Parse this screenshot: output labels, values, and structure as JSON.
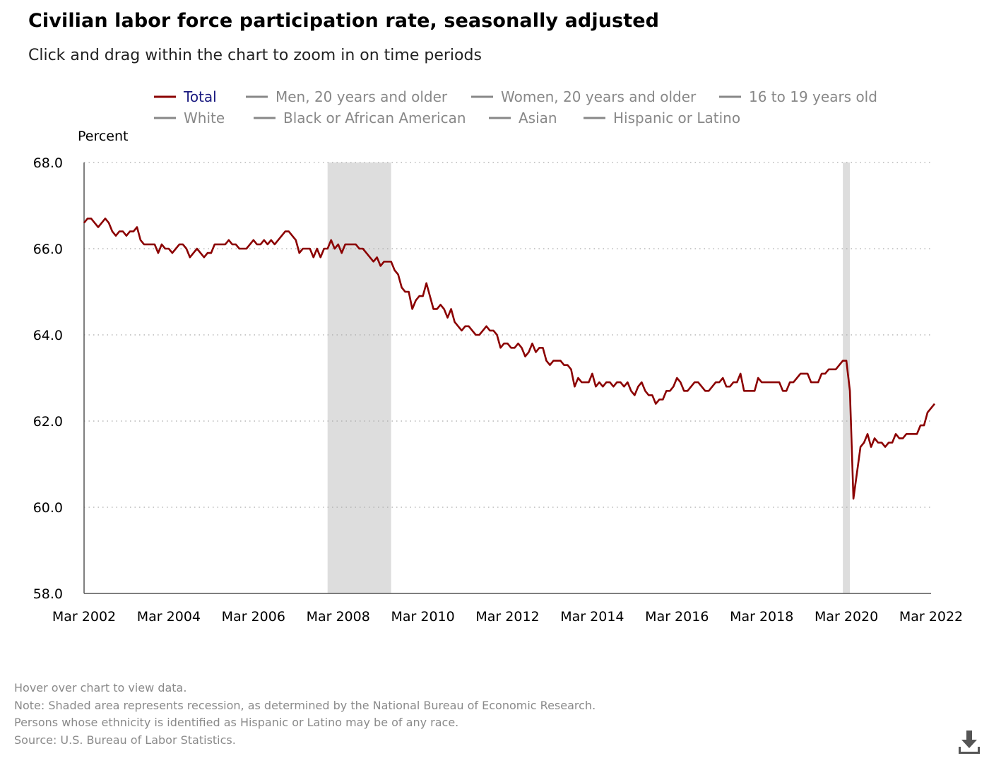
{
  "header": {
    "title": "Civilian labor force participation rate, seasonally adjusted",
    "subtitle": "Click and drag within the chart to zoom in on time periods"
  },
  "footnotes": [
    "Hover over chart to view data.",
    "Note: Shaded area represents recession, as determined by the National Bureau of Economic Research.",
    "Persons whose ethnicity is identified as Hispanic or Latino may be of any race.",
    "Source: U.S. Bureau of Labor Statistics."
  ],
  "download_icon": "download-icon",
  "colors": {
    "total_series": "#8b0000",
    "inactive_legend": "#888888",
    "active_legend_text": "#1a1a80",
    "recession_shade": "#dddddd",
    "grid": "#aaaaaa"
  },
  "chart_data": {
    "type": "line",
    "title": "Civilian labor force participation rate, seasonally adjusted",
    "ylabel": "Percent",
    "xlabel": "",
    "ylim": [
      58,
      68
    ],
    "yticks": [
      "58.0",
      "60.0",
      "62.0",
      "64.0",
      "66.0",
      "68.0"
    ],
    "x_range": [
      "2002-03",
      "2022-03"
    ],
    "xticks": [
      "Mar 2002",
      "Mar 2004",
      "Mar 2006",
      "Mar 2008",
      "Mar 2010",
      "Mar 2012",
      "Mar 2014",
      "Mar 2016",
      "Mar 2018",
      "Mar 2020",
      "Mar 2022"
    ],
    "grid": "horizontal dotted",
    "legend_position": "top",
    "recessions": [
      {
        "start": "2007-12",
        "end": "2009-06"
      },
      {
        "start": "2020-02",
        "end": "2020-04"
      }
    ],
    "legend": [
      {
        "name": "Total",
        "active": true
      },
      {
        "name": "Men, 20 years and older",
        "active": false
      },
      {
        "name": "Women, 20 years and older",
        "active": false
      },
      {
        "name": "16 to 19 years old",
        "active": false
      },
      {
        "name": "White",
        "active": false
      },
      {
        "name": "Black or African American",
        "active": false
      },
      {
        "name": "Asian",
        "active": false
      },
      {
        "name": "Hispanic or Latino",
        "active": false
      }
    ],
    "series": [
      {
        "name": "Total",
        "start": "2002-03",
        "frequency": "monthly",
        "values": [
          66.6,
          66.7,
          66.7,
          66.6,
          66.5,
          66.6,
          66.7,
          66.6,
          66.4,
          66.3,
          66.4,
          66.4,
          66.3,
          66.4,
          66.4,
          66.5,
          66.2,
          66.1,
          66.1,
          66.1,
          66.1,
          65.9,
          66.1,
          66.0,
          66.0,
          65.9,
          66.0,
          66.1,
          66.1,
          66.0,
          65.8,
          65.9,
          66.0,
          65.9,
          65.8,
          65.9,
          65.9,
          66.1,
          66.1,
          66.1,
          66.1,
          66.2,
          66.1,
          66.1,
          66.0,
          66.0,
          66.0,
          66.1,
          66.2,
          66.1,
          66.1,
          66.2,
          66.1,
          66.2,
          66.1,
          66.2,
          66.3,
          66.4,
          66.4,
          66.3,
          66.2,
          65.9,
          66.0,
          66.0,
          66.0,
          65.8,
          66.0,
          65.8,
          66.0,
          66.0,
          66.2,
          66.0,
          66.1,
          65.9,
          66.1,
          66.1,
          66.1,
          66.1,
          66.0,
          66.0,
          65.9,
          65.8,
          65.7,
          65.8,
          65.6,
          65.7,
          65.7,
          65.7,
          65.5,
          65.4,
          65.1,
          65.0,
          65.0,
          64.6,
          64.8,
          64.9,
          64.9,
          65.2,
          64.9,
          64.6,
          64.6,
          64.7,
          64.6,
          64.4,
          64.6,
          64.3,
          64.2,
          64.1,
          64.2,
          64.2,
          64.1,
          64.0,
          64.0,
          64.1,
          64.2,
          64.1,
          64.1,
          64.0,
          63.7,
          63.8,
          63.8,
          63.7,
          63.7,
          63.8,
          63.7,
          63.5,
          63.6,
          63.8,
          63.6,
          63.7,
          63.7,
          63.4,
          63.3,
          63.4,
          63.4,
          63.4,
          63.3,
          63.3,
          63.2,
          62.8,
          63.0,
          62.9,
          62.9,
          62.9,
          63.1,
          62.8,
          62.9,
          62.8,
          62.9,
          62.9,
          62.8,
          62.9,
          62.9,
          62.8,
          62.9,
          62.7,
          62.6,
          62.8,
          62.9,
          62.7,
          62.6,
          62.6,
          62.4,
          62.5,
          62.5,
          62.7,
          62.7,
          62.8,
          63.0,
          62.9,
          62.7,
          62.7,
          62.8,
          62.9,
          62.9,
          62.8,
          62.7,
          62.7,
          62.8,
          62.9,
          62.9,
          63.0,
          62.8,
          62.8,
          62.9,
          62.9,
          63.1,
          62.7,
          62.7,
          62.7,
          62.7,
          63.0,
          62.9,
          62.9,
          62.9,
          62.9,
          62.9,
          62.9,
          62.7,
          62.7,
          62.9,
          62.9,
          63.0,
          63.1,
          63.1,
          63.1,
          62.9,
          62.9,
          62.9,
          63.1,
          63.1,
          63.2,
          63.2,
          63.2,
          63.3,
          63.4,
          63.4,
          62.7,
          60.2,
          60.8,
          61.4,
          61.5,
          61.7,
          61.4,
          61.6,
          61.5,
          61.5,
          61.4,
          61.5,
          61.5,
          61.7,
          61.6,
          61.6,
          61.7,
          61.7,
          61.7,
          61.7,
          61.9,
          61.9,
          62.2,
          62.3,
          62.4
        ]
      }
    ]
  }
}
